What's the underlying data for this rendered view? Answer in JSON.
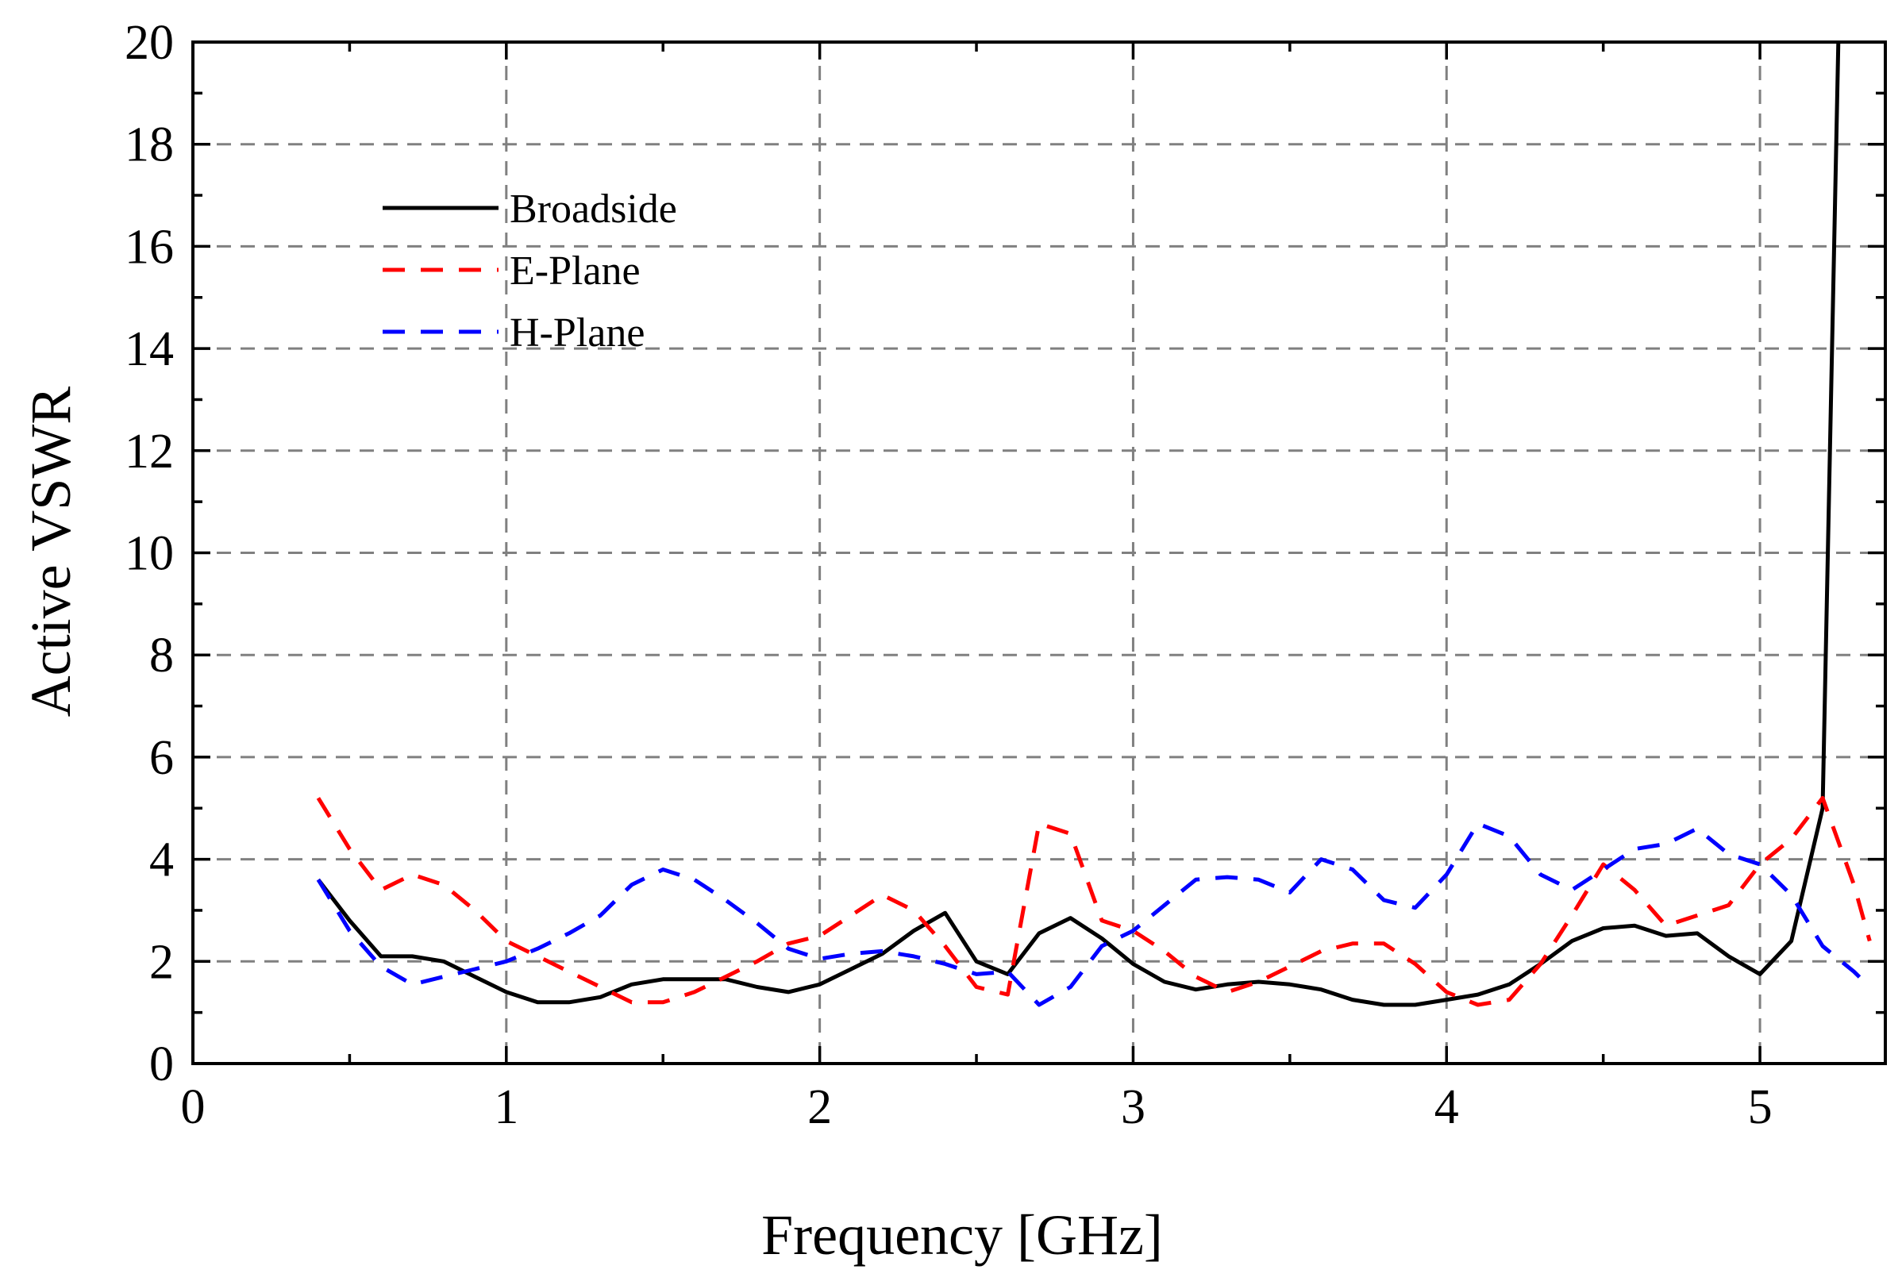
{
  "chart_data": {
    "type": "line",
    "title": "",
    "xlabel": "Frequency [GHz]",
    "ylabel": "Active VSWR",
    "xlim": [
      0,
      5.4
    ],
    "ylim": [
      0,
      20
    ],
    "xticks": [
      0,
      1,
      2,
      3,
      4,
      5
    ],
    "yticks": [
      0,
      2,
      4,
      6,
      8,
      10,
      12,
      14,
      16,
      18,
      20
    ],
    "xtick_labels": [
      "0",
      "1",
      "2",
      "3",
      "4",
      "5"
    ],
    "ytick_labels": [
      "0",
      "2",
      "4",
      "6",
      "8",
      "10",
      "12",
      "14",
      "16",
      "18",
      "20"
    ],
    "grid": true,
    "legend_position": "top-left",
    "series": [
      {
        "name": "Broadside",
        "color": "#000000",
        "style": "solid",
        "x": [
          0.4,
          0.5,
          0.6,
          0.7,
          0.8,
          0.9,
          1.0,
          1.1,
          1.2,
          1.3,
          1.4,
          1.5,
          1.6,
          1.7,
          1.8,
          1.9,
          2.0,
          2.1,
          2.2,
          2.3,
          2.4,
          2.5,
          2.6,
          2.7,
          2.8,
          2.9,
          3.0,
          3.1,
          3.2,
          3.3,
          3.4,
          3.5,
          3.6,
          3.7,
          3.8,
          3.9,
          4.0,
          4.1,
          4.2,
          4.3,
          4.4,
          4.5,
          4.6,
          4.7,
          4.8,
          4.9,
          5.0,
          5.1,
          5.2,
          5.22,
          5.25
        ],
        "y": [
          3.6,
          2.8,
          2.1,
          2.1,
          2.0,
          1.7,
          1.4,
          1.2,
          1.2,
          1.3,
          1.55,
          1.65,
          1.65,
          1.65,
          1.5,
          1.4,
          1.55,
          1.85,
          2.15,
          2.6,
          2.95,
          2.0,
          1.75,
          2.55,
          2.85,
          2.45,
          1.95,
          1.6,
          1.45,
          1.55,
          1.6,
          1.55,
          1.45,
          1.25,
          1.15,
          1.15,
          1.25,
          1.35,
          1.55,
          1.95,
          2.4,
          2.65,
          2.7,
          2.5,
          2.55,
          2.1,
          1.75,
          2.4,
          5.0,
          11.0,
          20.0
        ]
      },
      {
        "name": "E-Plane",
        "color": "#ff0000",
        "style": "dashed",
        "x": [
          0.4,
          0.5,
          0.6,
          0.7,
          0.8,
          0.9,
          1.0,
          1.1,
          1.2,
          1.3,
          1.4,
          1.5,
          1.6,
          1.7,
          1.8,
          1.9,
          2.0,
          2.1,
          2.2,
          2.3,
          2.4,
          2.5,
          2.6,
          2.7,
          2.8,
          2.9,
          3.0,
          3.1,
          3.2,
          3.3,
          3.4,
          3.5,
          3.6,
          3.7,
          3.8,
          3.9,
          4.0,
          4.1,
          4.2,
          4.3,
          4.4,
          4.5,
          4.6,
          4.7,
          4.8,
          4.9,
          5.0,
          5.1,
          5.2,
          5.3,
          5.35
        ],
        "y": [
          5.2,
          4.2,
          3.4,
          3.7,
          3.5,
          3.0,
          2.4,
          2.1,
          1.8,
          1.5,
          1.2,
          1.2,
          1.4,
          1.7,
          2.0,
          2.35,
          2.5,
          2.9,
          3.3,
          3.0,
          2.3,
          1.5,
          1.35,
          4.7,
          4.5,
          2.8,
          2.6,
          2.2,
          1.7,
          1.4,
          1.6,
          1.9,
          2.2,
          2.35,
          2.35,
          1.95,
          1.4,
          1.15,
          1.25,
          1.95,
          2.9,
          3.9,
          3.4,
          2.7,
          2.9,
          3.1,
          3.9,
          4.4,
          5.2,
          3.5,
          2.4
        ]
      },
      {
        "name": "H-Plane",
        "color": "#0000ff",
        "style": "dashed",
        "x": [
          0.4,
          0.5,
          0.6,
          0.7,
          0.8,
          0.9,
          1.0,
          1.1,
          1.2,
          1.3,
          1.4,
          1.5,
          1.6,
          1.7,
          1.8,
          1.9,
          2.0,
          2.1,
          2.2,
          2.3,
          2.4,
          2.5,
          2.6,
          2.7,
          2.8,
          2.9,
          3.0,
          3.1,
          3.2,
          3.3,
          3.4,
          3.5,
          3.6,
          3.7,
          3.8,
          3.9,
          4.0,
          4.1,
          4.2,
          4.3,
          4.4,
          4.5,
          4.6,
          4.7,
          4.8,
          4.9,
          5.0,
          5.1,
          5.2,
          5.3,
          5.35
        ],
        "y": [
          3.6,
          2.6,
          1.9,
          1.55,
          1.7,
          1.85,
          2.0,
          2.25,
          2.55,
          2.9,
          3.5,
          3.8,
          3.6,
          3.2,
          2.75,
          2.25,
          2.05,
          2.15,
          2.2,
          2.1,
          1.95,
          1.75,
          1.8,
          1.15,
          1.5,
          2.3,
          2.6,
          3.1,
          3.6,
          3.65,
          3.6,
          3.35,
          4.0,
          3.8,
          3.2,
          3.05,
          3.7,
          4.7,
          4.45,
          3.7,
          3.4,
          3.8,
          4.2,
          4.3,
          4.6,
          4.1,
          3.9,
          3.3,
          2.3,
          1.8,
          1.5
        ]
      }
    ]
  }
}
